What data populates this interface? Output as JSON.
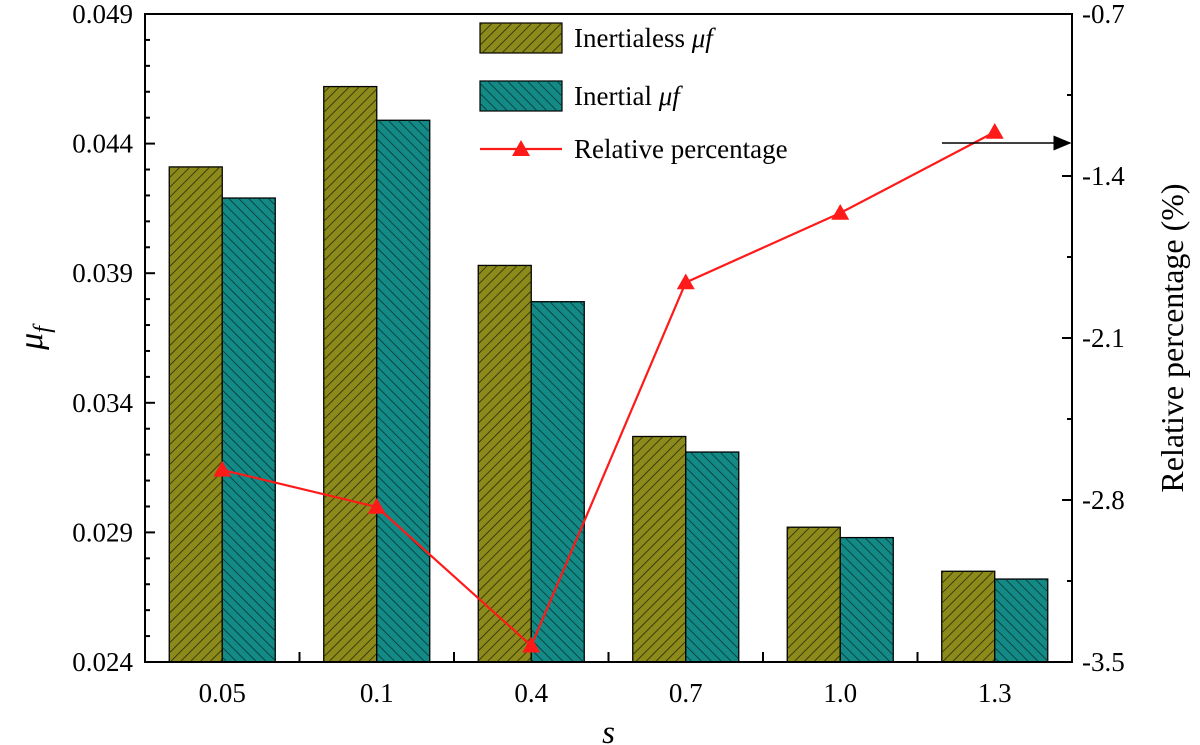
{
  "chart_data": {
    "type": "bar",
    "categories": [
      "0.05",
      "0.1",
      "0.4",
      "0.7",
      "1.0",
      "1.3"
    ],
    "xlabel": "s",
    "ylabel": "μf",
    "ylabel_symbol": "μ",
    "ylabel_sub": "f",
    "y2label": "Relative percentage (%)",
    "ylim": [
      0.024,
      0.049
    ],
    "yticks": [
      "0.024",
      "0.029",
      "0.034",
      "0.039",
      "0.044",
      "0.049"
    ],
    "y2lim": [
      -3.5,
      -0.7
    ],
    "y2ticks": [
      "-3.5",
      "-2.8",
      "-2.1",
      "-1.4",
      "-0.7"
    ],
    "series": [
      {
        "name": "Inertialess μf",
        "name_text": "Inertialess ",
        "name_symbol": "μf",
        "kind": "bar",
        "axis": "left",
        "color": "#8b8a1a",
        "values": [
          0.0431,
          0.0462,
          0.0393,
          0.0327,
          0.0292,
          0.0275
        ]
      },
      {
        "name": "Inertial μf",
        "name_text": "Inertial ",
        "name_symbol": "μf",
        "kind": "bar",
        "axis": "left",
        "color": "#138a85",
        "values": [
          0.0419,
          0.0449,
          0.0379,
          0.0321,
          0.0288,
          0.0272
        ]
      },
      {
        "name": "Relative percentage",
        "name_text": "Relative percentage",
        "name_symbol": "",
        "kind": "line",
        "axis": "right",
        "color": "#ff1a1a",
        "marker": "triangle",
        "values": [
          -2.67,
          -2.83,
          -3.43,
          -1.86,
          -1.56,
          -1.21
        ]
      }
    ],
    "annotation": "arrow pointing to right axis",
    "legend": "top-center",
    "grid": false
  }
}
